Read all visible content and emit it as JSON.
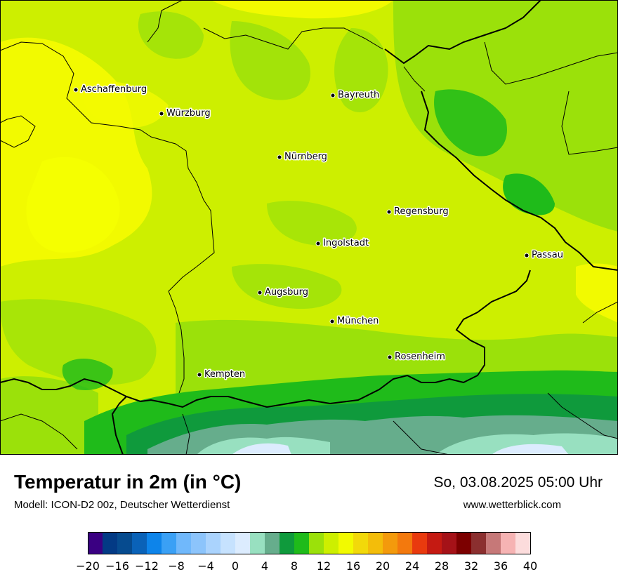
{
  "map": {
    "cities": [
      {
        "name": "Aschaffenburg"
      },
      {
        "name": "Würzburg"
      },
      {
        "name": "Bayreuth"
      },
      {
        "name": "Nürnberg"
      },
      {
        "name": "Regensburg"
      },
      {
        "name": "Ingolstadt"
      },
      {
        "name": "Passau"
      },
      {
        "name": "Augsburg"
      },
      {
        "name": "München"
      },
      {
        "name": "Rosenheim"
      },
      {
        "name": "Kempten"
      }
    ]
  },
  "header": {
    "title": "Temperatur in 2m (in °C)",
    "model": "Modell: ICON-D2 00z, Deutscher Wetterdienst",
    "datetime": "So, 03.08.2025 05:00 Uhr",
    "website": "www.wetterblick.com"
  },
  "legend": {
    "unit": "°C",
    "tick_labels": [
      "−20",
      "−16",
      "−12",
      "−8",
      "−4",
      "0",
      "4",
      "8",
      "12",
      "16",
      "20",
      "24",
      "28",
      "32",
      "36",
      "40"
    ],
    "bins": [
      {
        "from": -20,
        "to": -18,
        "color": "#3a0082"
      },
      {
        "from": -18,
        "to": -16,
        "color": "#033a85"
      },
      {
        "from": -16,
        "to": -14,
        "color": "#064b8f"
      },
      {
        "from": -14,
        "to": -12,
        "color": "#0a62b8"
      },
      {
        "from": -12,
        "to": -10,
        "color": "#0d84ea"
      },
      {
        "from": -10,
        "to": -8,
        "color": "#3aa0f5"
      },
      {
        "from": -8,
        "to": -6,
        "color": "#70b8fb"
      },
      {
        "from": -6,
        "to": -4,
        "color": "#8cc4fb"
      },
      {
        "from": -4,
        "to": -2,
        "color": "#aad3fd"
      },
      {
        "from": -2,
        "to": 0,
        "color": "#c6e2fe"
      },
      {
        "from": 0,
        "to": 2,
        "color": "#dcecfe"
      },
      {
        "from": 2,
        "to": 4,
        "color": "#98e0c0"
      },
      {
        "from": 4,
        "to": 6,
        "color": "#66ad8c"
      },
      {
        "from": 6,
        "to": 8,
        "color": "#0f9a3c"
      },
      {
        "from": 8,
        "to": 10,
        "color": "#1fbb1a"
      },
      {
        "from": 10,
        "to": 12,
        "color": "#9be10a"
      },
      {
        "from": 12,
        "to": 14,
        "color": "#cdef00"
      },
      {
        "from": 14,
        "to": 16,
        "color": "#f2fa00"
      },
      {
        "from": 16,
        "to": 18,
        "color": "#f2d90a"
      },
      {
        "from": 18,
        "to": 20,
        "color": "#f3bd0a"
      },
      {
        "from": 20,
        "to": 22,
        "color": "#f39a0c"
      },
      {
        "from": 22,
        "to": 24,
        "color": "#f3790d"
      },
      {
        "from": 24,
        "to": 26,
        "color": "#e93a0e"
      },
      {
        "from": 26,
        "to": 28,
        "color": "#c51a12"
      },
      {
        "from": 28,
        "to": 30,
        "color": "#a51218"
      },
      {
        "from": 30,
        "to": 32,
        "color": "#7c0000"
      },
      {
        "from": 32,
        "to": 34,
        "color": "#8b2f2f"
      },
      {
        "from": 34,
        "to": 36,
        "color": "#c67878"
      },
      {
        "from": 36,
        "to": 38,
        "color": "#f6b3b3"
      },
      {
        "from": 38,
        "to": 40,
        "color": "#fcdcdc"
      }
    ]
  }
}
